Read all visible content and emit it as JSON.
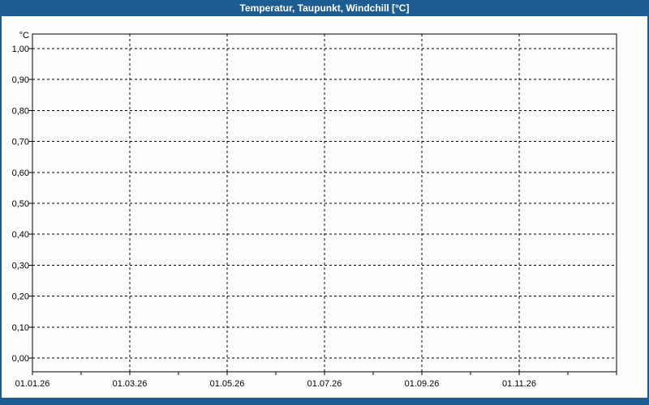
{
  "window": {
    "background": "#FDFEFC",
    "frame_color": "#1E5C94"
  },
  "title_bar": {
    "text": "Temperatur, Taupunkt, Windchill [°C]",
    "background": "#1E5C94",
    "text_color": "#FFFFFF"
  },
  "chart_data": {
    "type": "line",
    "title": "Temperatur, Taupunkt, Windchill [°C]",
    "xlabel": "",
    "ylabel": "°C",
    "y_tick_labels": [
      "1,00",
      "0,90",
      "0,80",
      "0,70",
      "0,60",
      "0,50",
      "0,40",
      "0,30",
      "0,20",
      "0,10",
      "0,00"
    ],
    "y_tick_values": [
      1.0,
      0.9,
      0.8,
      0.7,
      0.6,
      0.5,
      0.4,
      0.3,
      0.2,
      0.1,
      0.0
    ],
    "ylim": [
      -0.05,
      1.05
    ],
    "x_tick_labels": [
      "01.01.26",
      "01.03.26",
      "01.05.26",
      "01.07.26",
      "01.09.26",
      "01.11.26"
    ],
    "x_tick_months": [
      0,
      2,
      4,
      6,
      8,
      10
    ],
    "x_range_months": 12,
    "x_minor_tick_interval_months": 1,
    "grid": "dashed",
    "legend": null,
    "series": []
  },
  "colors": {
    "axis": "#000000",
    "grid": "#000000",
    "plot_background": "#FDFEFC"
  }
}
